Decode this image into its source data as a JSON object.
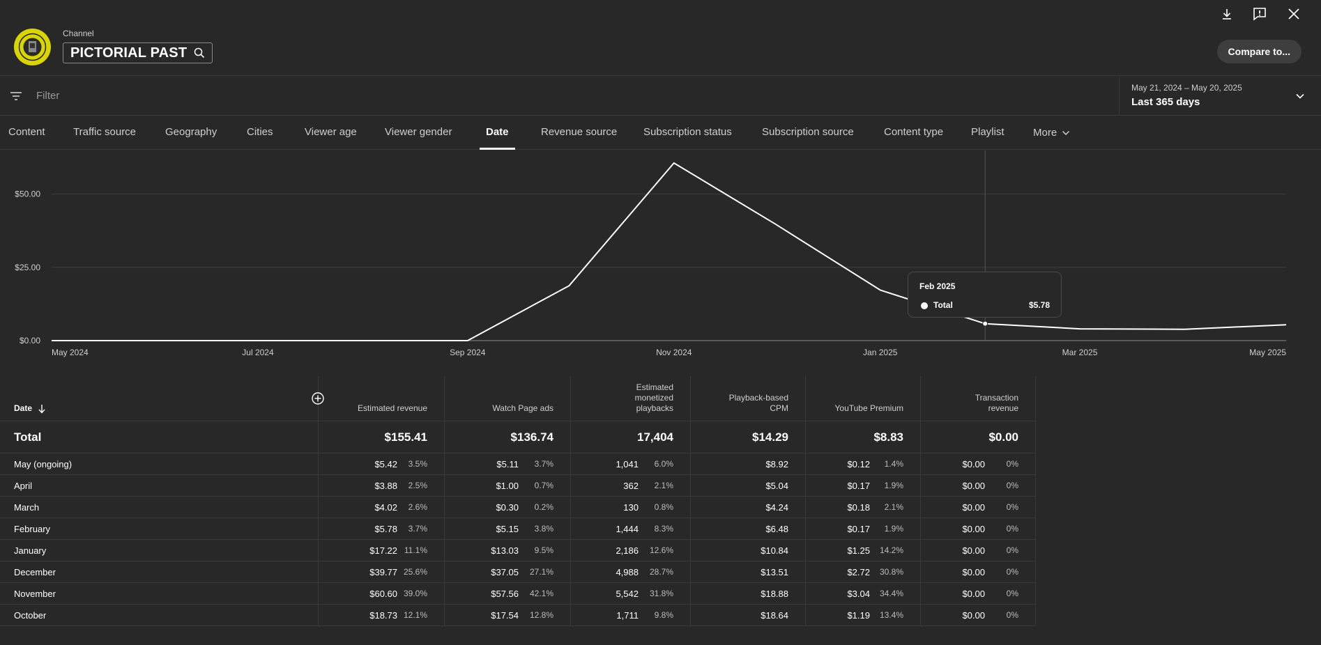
{
  "header": {
    "channel_label": "Channel",
    "channel_name": "PICTORIAL PAST",
    "compare_label": "Compare to...",
    "icons": [
      "download-icon",
      "feedback-icon",
      "close-icon"
    ]
  },
  "filter": {
    "placeholder": "Filter"
  },
  "date_range": {
    "range": "May 21, 2024 – May 20, 2025",
    "label": "Last 365 days"
  },
  "tabs": [
    {
      "label": "Content",
      "active": false
    },
    {
      "label": "Traffic source",
      "active": false
    },
    {
      "label": "Geography",
      "active": false
    },
    {
      "label": "Cities",
      "active": false
    },
    {
      "label": "Viewer age",
      "active": false
    },
    {
      "label": "Viewer gender",
      "active": false
    },
    {
      "label": "Date",
      "active": true
    },
    {
      "label": "Revenue source",
      "active": false
    },
    {
      "label": "Subscription status",
      "active": false
    },
    {
      "label": "Subscription source",
      "active": false
    },
    {
      "label": "Content type",
      "active": false
    },
    {
      "label": "Playlist",
      "active": false
    },
    {
      "label": "More",
      "active": false
    }
  ],
  "chart_data": {
    "type": "line",
    "series": [
      {
        "name": "Total",
        "x": [
          "2024-05-01",
          "2024-06-01",
          "2024-07-01",
          "2024-08-01",
          "2024-09-01",
          "2024-10-01",
          "2024-11-01",
          "2024-12-01",
          "2025-01-01",
          "2025-02-01",
          "2025-03-01",
          "2025-04-01",
          "2025-05-01"
        ],
        "values": [
          0,
          0,
          0,
          0,
          0,
          18.73,
          60.6,
          39.77,
          17.22,
          5.78,
          4.02,
          3.88,
          5.42
        ]
      }
    ],
    "x_tick_labels": [
      "May 2024",
      "Jul 2024",
      "Sep 2024",
      "Nov 2024",
      "Jan 2025",
      "Mar 2025",
      "May 2025"
    ],
    "y_tick_labels": [
      "$0.00",
      "$25.00",
      "$50.00"
    ],
    "ylim": [
      0,
      60.6
    ],
    "grid": true,
    "tooltip": {
      "title": "Feb 2025",
      "series": "Total",
      "value": "$5.78"
    }
  },
  "table": {
    "headers": {
      "date": "Date",
      "estimated_revenue": "Estimated revenue",
      "watch_page_ads": "Watch Page ads",
      "monetized_playbacks": "Estimated monetized playbacks",
      "cpm": "Playback-based CPM",
      "premium": "YouTube Premium",
      "transaction": "Transaction revenue"
    },
    "total": {
      "label": "Total",
      "estimated_revenue": "$155.41",
      "watch_page_ads": "$136.74",
      "monetized_playbacks": "17,404",
      "cpm": "$14.29",
      "premium": "$8.83",
      "transaction": "$0.00"
    },
    "rows": [
      {
        "label": "May (ongoing)",
        "rev": "$5.42",
        "rev_pct": "3.5%",
        "ads": "$5.11",
        "ads_pct": "3.7%",
        "plays": "1,041",
        "plays_pct": "6.0%",
        "cpm": "$8.92",
        "prem": "$0.12",
        "prem_pct": "1.4%",
        "trans": "$0.00",
        "trans_pct": "0%"
      },
      {
        "label": "April",
        "rev": "$3.88",
        "rev_pct": "2.5%",
        "ads": "$1.00",
        "ads_pct": "0.7%",
        "plays": "362",
        "plays_pct": "2.1%",
        "cpm": "$5.04",
        "prem": "$0.17",
        "prem_pct": "1.9%",
        "trans": "$0.00",
        "trans_pct": "0%"
      },
      {
        "label": "March",
        "rev": "$4.02",
        "rev_pct": "2.6%",
        "ads": "$0.30",
        "ads_pct": "0.2%",
        "plays": "130",
        "plays_pct": "0.8%",
        "cpm": "$4.24",
        "prem": "$0.18",
        "prem_pct": "2.1%",
        "trans": "$0.00",
        "trans_pct": "0%"
      },
      {
        "label": "February",
        "rev": "$5.78",
        "rev_pct": "3.7%",
        "ads": "$5.15",
        "ads_pct": "3.8%",
        "plays": "1,444",
        "plays_pct": "8.3%",
        "cpm": "$6.48",
        "prem": "$0.17",
        "prem_pct": "1.9%",
        "trans": "$0.00",
        "trans_pct": "0%"
      },
      {
        "label": "January",
        "rev": "$17.22",
        "rev_pct": "11.1%",
        "ads": "$13.03",
        "ads_pct": "9.5%",
        "plays": "2,186",
        "plays_pct": "12.6%",
        "cpm": "$10.84",
        "prem": "$1.25",
        "prem_pct": "14.2%",
        "trans": "$0.00",
        "trans_pct": "0%"
      },
      {
        "label": "December",
        "rev": "$39.77",
        "rev_pct": "25.6%",
        "ads": "$37.05",
        "ads_pct": "27.1%",
        "plays": "4,988",
        "plays_pct": "28.7%",
        "cpm": "$13.51",
        "prem": "$2.72",
        "prem_pct": "30.8%",
        "trans": "$0.00",
        "trans_pct": "0%"
      },
      {
        "label": "November",
        "rev": "$60.60",
        "rev_pct": "39.0%",
        "ads": "$57.56",
        "ads_pct": "42.1%",
        "plays": "5,542",
        "plays_pct": "31.8%",
        "cpm": "$18.88",
        "prem": "$3.04",
        "prem_pct": "34.4%",
        "trans": "$0.00",
        "trans_pct": "0%"
      },
      {
        "label": "October",
        "rev": "$18.73",
        "rev_pct": "12.1%",
        "ads": "$17.54",
        "ads_pct": "12.8%",
        "plays": "1,711",
        "plays_pct": "9.8%",
        "cpm": "$18.64",
        "prem": "$1.19",
        "prem_pct": "13.4%",
        "trans": "$0.00",
        "trans_pct": "0%"
      }
    ]
  }
}
